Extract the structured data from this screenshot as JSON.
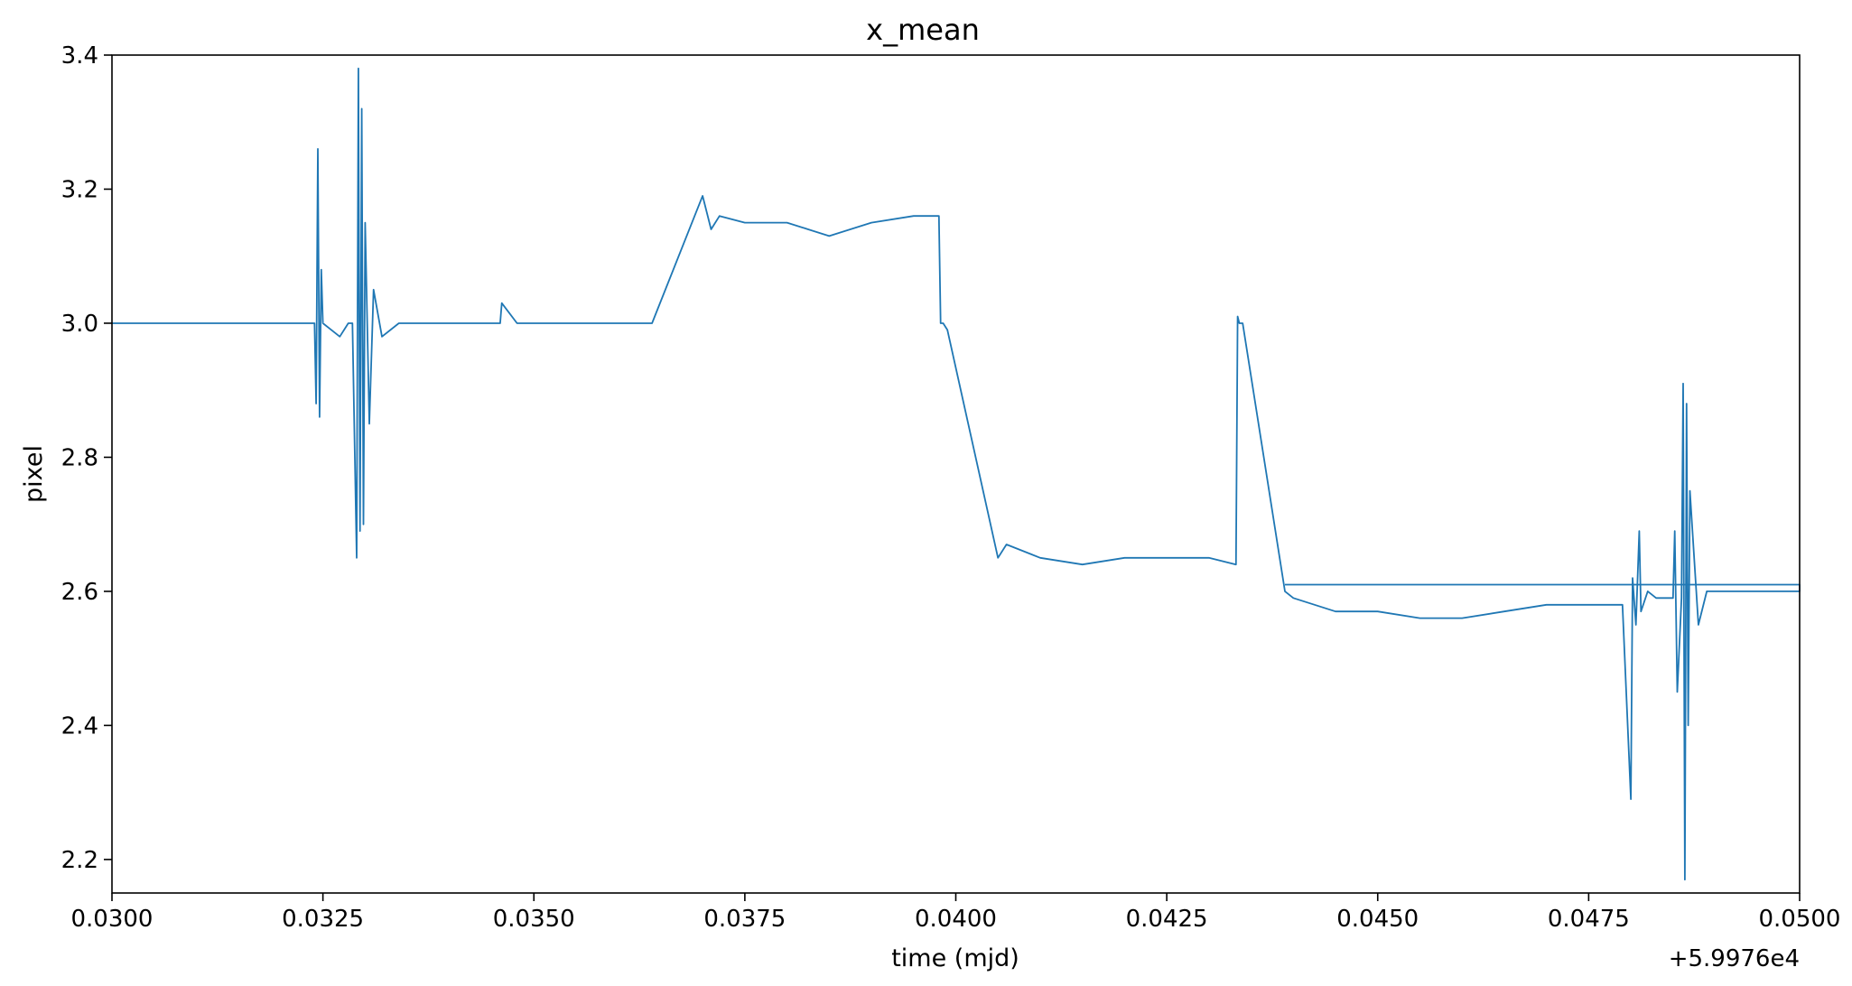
{
  "chart_data": {
    "type": "line",
    "title": "x_mean",
    "xlabel": "time (mjd)",
    "ylabel": "pixel",
    "x_offset_label": "+5.9976e4",
    "xlim": [
      0.03,
      0.05
    ],
    "ylim": [
      2.15,
      3.4
    ],
    "x_ticks": [
      0.03,
      0.0325,
      0.035,
      0.0375,
      0.04,
      0.0425,
      0.045,
      0.0475,
      0.05
    ],
    "x_tick_labels": [
      "0.0300",
      "0.0325",
      "0.0350",
      "0.0375",
      "0.0400",
      "0.0425",
      "0.0450",
      "0.0475",
      "0.0500"
    ],
    "y_ticks": [
      2.2,
      2.4,
      2.6,
      2.8,
      3.0,
      3.2,
      3.4
    ],
    "y_tick_labels": [
      "2.2",
      "2.4",
      "2.6",
      "2.8",
      "3.0",
      "3.2",
      "3.4"
    ],
    "grid": false,
    "series": [
      {
        "color": "#1f77b4",
        "x": [
          0.03,
          0.031,
          0.032,
          0.0324,
          0.03242,
          0.03244,
          0.03246,
          0.03248,
          0.0325,
          0.0326,
          0.0327,
          0.0328,
          0.03285,
          0.0329,
          0.03292,
          0.03294,
          0.03296,
          0.03298,
          0.033,
          0.03305,
          0.0331,
          0.0332,
          0.0334,
          0.0338,
          0.0342,
          0.0346,
          0.03462,
          0.0348,
          0.0352,
          0.0356,
          0.036,
          0.0364,
          0.037,
          0.0371,
          0.0372,
          0.0375,
          0.038,
          0.0385,
          0.039,
          0.0395,
          0.0398,
          0.03982,
          0.03985,
          0.0399,
          0.0405,
          0.0406,
          0.041,
          0.0415,
          0.042,
          0.0425,
          0.043,
          0.04332,
          0.04334,
          0.04336,
          0.0434,
          0.0439,
          0.044,
          0.0445,
          0.045,
          0.0455,
          0.046,
          0.0465,
          0.047,
          0.0475,
          0.0479,
          0.048,
          0.04802,
          0.04806,
          0.0481,
          0.04812,
          0.0482,
          0.0483,
          0.0485,
          0.04852,
          0.04855,
          0.0486,
          0.04862,
          0.04864,
          0.04866,
          0.04868,
          0.0487,
          0.0488,
          0.0489,
          0.049,
          0.0495,
          0.05,
          0.05,
          0.0439
        ],
        "y": [
          3.0,
          3.0,
          3.0,
          3.0,
          2.88,
          3.26,
          2.86,
          3.08,
          3.0,
          2.99,
          2.98,
          3.0,
          3.0,
          2.65,
          3.38,
          2.69,
          3.32,
          2.7,
          3.15,
          2.85,
          3.05,
          2.98,
          3.0,
          3.0,
          3.0,
          3.0,
          3.03,
          3.0,
          3.0,
          3.0,
          3.0,
          3.0,
          3.19,
          3.14,
          3.16,
          3.15,
          3.15,
          3.13,
          3.15,
          3.16,
          3.16,
          3.0,
          3.0,
          2.99,
          2.65,
          2.67,
          2.65,
          2.64,
          2.65,
          2.65,
          2.65,
          2.64,
          3.01,
          3.0,
          3.0,
          2.6,
          2.59,
          2.57,
          2.57,
          2.56,
          2.56,
          2.57,
          2.58,
          2.58,
          2.58,
          2.29,
          2.62,
          2.55,
          2.69,
          2.57,
          2.6,
          2.59,
          2.59,
          2.69,
          2.45,
          2.59,
          2.91,
          2.17,
          2.88,
          2.4,
          2.75,
          2.55,
          2.6,
          2.6,
          2.6,
          2.6,
          2.61,
          2.61
        ]
      }
    ]
  }
}
